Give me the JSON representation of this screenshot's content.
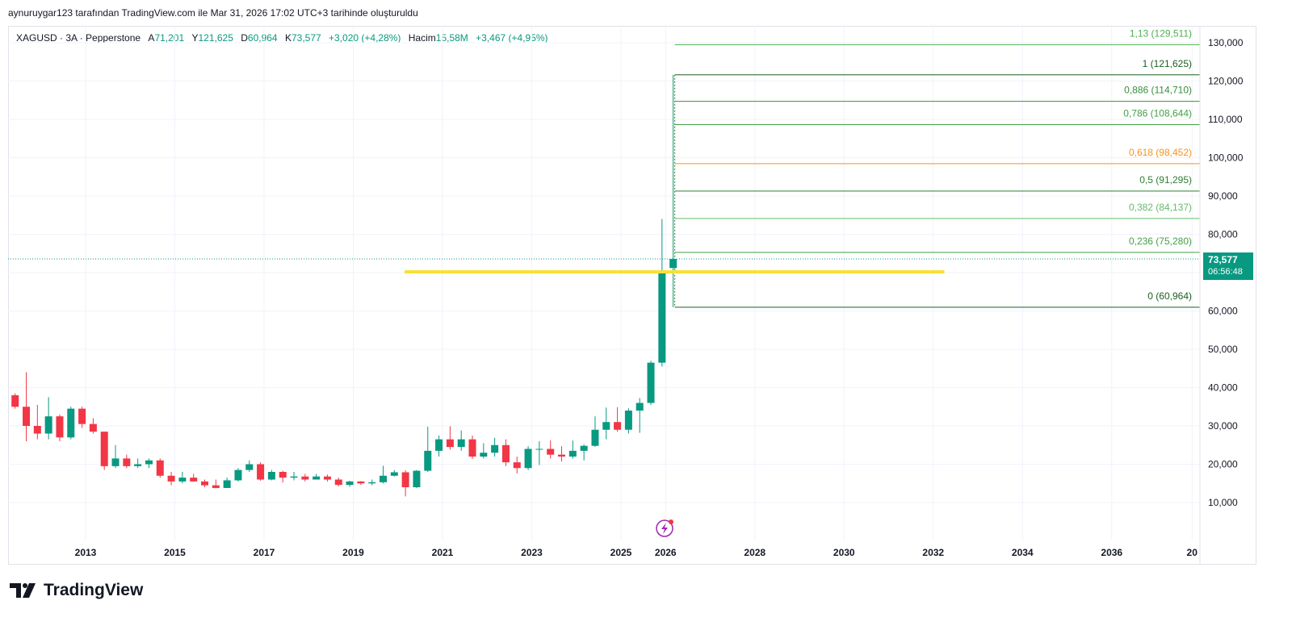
{
  "attribution": "aynuruygar123 tarafından TradingView.com ile Mar 31, 2026 17:02 UTC+3 tarihinde oluşturuldu",
  "legend": {
    "symbol": "XAGUSD · 3A · Pepperstone",
    "open_label": "A",
    "open": "71,201",
    "high_label": "Y",
    "high": "121,625",
    "low_label": "D",
    "low": "60,964",
    "close_label": "K",
    "close": "73,577",
    "change": "+3,020 (+4,28%)",
    "volume_label": "Hacim",
    "volume": "15,58M",
    "volume_change": "+3,467 (+4,95%)"
  },
  "price_tag": {
    "price": "73,577",
    "countdown": "06:56:48"
  },
  "footer": {
    "brand": "TradingView",
    "logo_icon": "tradingview-logo-icon"
  },
  "colors": {
    "up": "#089981",
    "down": "#f23645",
    "accent": "#089981",
    "yellow": "#f7e135",
    "fib_orange": "#f7931a"
  },
  "chart_data": {
    "type": "candlestick",
    "y_axis": {
      "min": 0,
      "max": 135000,
      "ticks": [
        "10,000",
        "20,000",
        "30,000",
        "40,000",
        "50,000",
        "60,000",
        "70,000",
        "80,000",
        "90,000",
        "100,000",
        "110,000",
        "120,000",
        "130,000"
      ],
      "tick_values": [
        10000,
        20000,
        30000,
        40000,
        50000,
        60000,
        70000,
        80000,
        90000,
        100000,
        110000,
        120000,
        130000
      ],
      "position": "right"
    },
    "x_axis": {
      "min": 2011.3,
      "max": 2037.8,
      "ticks": [
        "2013",
        "2015",
        "2017",
        "2019",
        "2021",
        "2023",
        "2025",
        "2026",
        "2028",
        "2030",
        "2032",
        "2034",
        "2036",
        "20"
      ],
      "tick_values": [
        2013,
        2015,
        2017,
        2019,
        2021,
        2023,
        2025,
        2026,
        2028,
        2030,
        2032,
        2034,
        2036,
        2037.8
      ]
    },
    "grid": true,
    "current_price": 73577,
    "candles": [
      {
        "t": 2011.42,
        "o": 38000,
        "h": 38500,
        "l": 34500,
        "c": 35000
      },
      {
        "t": 2011.67,
        "o": 35000,
        "h": 44000,
        "l": 26000,
        "c": 30000
      },
      {
        "t": 2011.92,
        "o": 30000,
        "h": 35500,
        "l": 26500,
        "c": 28000
      },
      {
        "t": 2012.17,
        "o": 28000,
        "h": 37500,
        "l": 26500,
        "c": 32500
      },
      {
        "t": 2012.42,
        "o": 32500,
        "h": 33000,
        "l": 26000,
        "c": 27000
      },
      {
        "t": 2012.67,
        "o": 27000,
        "h": 35000,
        "l": 26500,
        "c": 34500
      },
      {
        "t": 2012.92,
        "o": 34500,
        "h": 35000,
        "l": 29500,
        "c": 30500
      },
      {
        "t": 2013.17,
        "o": 30500,
        "h": 32000,
        "l": 28000,
        "c": 28500
      },
      {
        "t": 2013.42,
        "o": 28500,
        "h": 28500,
        "l": 18500,
        "c": 19500
      },
      {
        "t": 2013.67,
        "o": 19500,
        "h": 25000,
        "l": 19000,
        "c": 21500
      },
      {
        "t": 2013.92,
        "o": 21500,
        "h": 22500,
        "l": 19000,
        "c": 19500
      },
      {
        "t": 2014.17,
        "o": 19500,
        "h": 21500,
        "l": 19000,
        "c": 20000
      },
      {
        "t": 2014.42,
        "o": 20000,
        "h": 21500,
        "l": 19000,
        "c": 21000
      },
      {
        "t": 2014.67,
        "o": 21000,
        "h": 21500,
        "l": 16500,
        "c": 17000
      },
      {
        "t": 2014.92,
        "o": 17000,
        "h": 18000,
        "l": 14500,
        "c": 15500
      },
      {
        "t": 2015.17,
        "o": 15500,
        "h": 18000,
        "l": 15000,
        "c": 16500
      },
      {
        "t": 2015.42,
        "o": 16500,
        "h": 17500,
        "l": 15500,
        "c": 15500
      },
      {
        "t": 2015.67,
        "o": 15500,
        "h": 16000,
        "l": 14000,
        "c": 14500
      },
      {
        "t": 2015.92,
        "o": 14500,
        "h": 16000,
        "l": 13700,
        "c": 13800
      },
      {
        "t": 2016.17,
        "o": 13800,
        "h": 16500,
        "l": 13800,
        "c": 15800
      },
      {
        "t": 2016.42,
        "o": 15800,
        "h": 19000,
        "l": 15500,
        "c": 18500
      },
      {
        "t": 2016.67,
        "o": 18500,
        "h": 21000,
        "l": 18000,
        "c": 20000
      },
      {
        "t": 2016.92,
        "o": 20000,
        "h": 20500,
        "l": 15700,
        "c": 16000
      },
      {
        "t": 2017.17,
        "o": 16000,
        "h": 18500,
        "l": 15800,
        "c": 18000
      },
      {
        "t": 2017.42,
        "o": 18000,
        "h": 18300,
        "l": 15200,
        "c": 16500
      },
      {
        "t": 2017.67,
        "o": 16500,
        "h": 18000,
        "l": 15800,
        "c": 16800
      },
      {
        "t": 2017.92,
        "o": 16800,
        "h": 17500,
        "l": 15500,
        "c": 16000
      },
      {
        "t": 2018.17,
        "o": 16000,
        "h": 17500,
        "l": 16000,
        "c": 16800
      },
      {
        "t": 2018.42,
        "o": 16800,
        "h": 17300,
        "l": 15500,
        "c": 16000
      },
      {
        "t": 2018.67,
        "o": 16000,
        "h": 16500,
        "l": 14200,
        "c": 14600
      },
      {
        "t": 2018.92,
        "o": 14600,
        "h": 15700,
        "l": 14100,
        "c": 15500
      },
      {
        "t": 2019.17,
        "o": 15500,
        "h": 15600,
        "l": 14600,
        "c": 15000
      },
      {
        "t": 2019.42,
        "o": 15000,
        "h": 16000,
        "l": 14500,
        "c": 15300
      },
      {
        "t": 2019.67,
        "o": 15300,
        "h": 19600,
        "l": 15000,
        "c": 17000
      },
      {
        "t": 2019.92,
        "o": 17000,
        "h": 18500,
        "l": 16800,
        "c": 17900
      },
      {
        "t": 2020.17,
        "o": 17900,
        "h": 18400,
        "l": 11600,
        "c": 14000
      },
      {
        "t": 2020.42,
        "o": 14000,
        "h": 18500,
        "l": 13800,
        "c": 18300
      },
      {
        "t": 2020.67,
        "o": 18300,
        "h": 29800,
        "l": 18000,
        "c": 23500
      },
      {
        "t": 2020.92,
        "o": 23500,
        "h": 27500,
        "l": 22000,
        "c": 26500
      },
      {
        "t": 2021.17,
        "o": 26500,
        "h": 29900,
        "l": 23800,
        "c": 24500
      },
      {
        "t": 2021.42,
        "o": 24500,
        "h": 28800,
        "l": 23500,
        "c": 26500
      },
      {
        "t": 2021.67,
        "o": 26500,
        "h": 27500,
        "l": 21400,
        "c": 22000
      },
      {
        "t": 2021.92,
        "o": 22000,
        "h": 25500,
        "l": 21500,
        "c": 23000
      },
      {
        "t": 2022.17,
        "o": 23000,
        "h": 26900,
        "l": 22000,
        "c": 25000
      },
      {
        "t": 2022.42,
        "o": 25000,
        "h": 26500,
        "l": 19500,
        "c": 20500
      },
      {
        "t": 2022.67,
        "o": 20500,
        "h": 22000,
        "l": 17600,
        "c": 19000
      },
      {
        "t": 2022.92,
        "o": 19000,
        "h": 24700,
        "l": 18500,
        "c": 24000
      },
      {
        "t": 2023.17,
        "o": 24000,
        "h": 26000,
        "l": 19800,
        "c": 24000
      },
      {
        "t": 2023.42,
        "o": 24000,
        "h": 26200,
        "l": 21500,
        "c": 22500
      },
      {
        "t": 2023.67,
        "o": 22500,
        "h": 24700,
        "l": 20700,
        "c": 22000
      },
      {
        "t": 2023.92,
        "o": 22000,
        "h": 26200,
        "l": 21500,
        "c": 23500
      },
      {
        "t": 2024.17,
        "o": 23500,
        "h": 25200,
        "l": 21000,
        "c": 24800
      },
      {
        "t": 2024.42,
        "o": 24800,
        "h": 32500,
        "l": 24500,
        "c": 29000
      },
      {
        "t": 2024.67,
        "o": 29000,
        "h": 34800,
        "l": 26500,
        "c": 31000
      },
      {
        "t": 2024.92,
        "o": 31000,
        "h": 34900,
        "l": 28500,
        "c": 29000
      },
      {
        "t": 2025.17,
        "o": 29000,
        "h": 34600,
        "l": 28000,
        "c": 34000
      },
      {
        "t": 2025.42,
        "o": 34000,
        "h": 37300,
        "l": 28200,
        "c": 36000
      },
      {
        "t": 2025.67,
        "o": 36000,
        "h": 47000,
        "l": 35500,
        "c": 46500
      },
      {
        "t": 2025.92,
        "o": 46500,
        "h": 84000,
        "l": 45500,
        "c": 70500
      },
      {
        "t": 2026.17,
        "o": 71201,
        "h": 121625,
        "l": 60964,
        "c": 73577
      }
    ],
    "fibonacci": {
      "levels": [
        {
          "ratio": "1,13",
          "value": 129511,
          "label": "1,13 (129,511)",
          "color": "#4caf50"
        },
        {
          "ratio": "1",
          "value": 121625,
          "label": "1 (121,625)",
          "color": "#1b5e20"
        },
        {
          "ratio": "0,886",
          "value": 114710,
          "label": "0,886 (114,710)",
          "color": "#388e3c"
        },
        {
          "ratio": "0,786",
          "value": 108644,
          "label": "0,786 (108,644)",
          "color": "#43a047"
        },
        {
          "ratio": "0,618",
          "value": 98452,
          "label": "0,618 (98,452)",
          "color": "#f7931a"
        },
        {
          "ratio": "0,5",
          "value": 91295,
          "label": "0,5 (91,295)",
          "color": "#2e7d32"
        },
        {
          "ratio": "0,382",
          "value": 84137,
          "label": "0,382 (84,137)",
          "color": "#66bb6a"
        },
        {
          "ratio": "0,236",
          "value": 75280,
          "label": "0,236 (75,280)",
          "color": "#43a047"
        },
        {
          "ratio": "0",
          "value": 60964,
          "label": "0 (60,964)",
          "color": "#1b5e20"
        }
      ],
      "start_t": 2026.17
    },
    "horizontal_line": {
      "value": 70200,
      "t_start": 2020.15,
      "t_end": 2032.25,
      "color": "#f7e135"
    },
    "event_marker_icon": "lightning-icon"
  }
}
